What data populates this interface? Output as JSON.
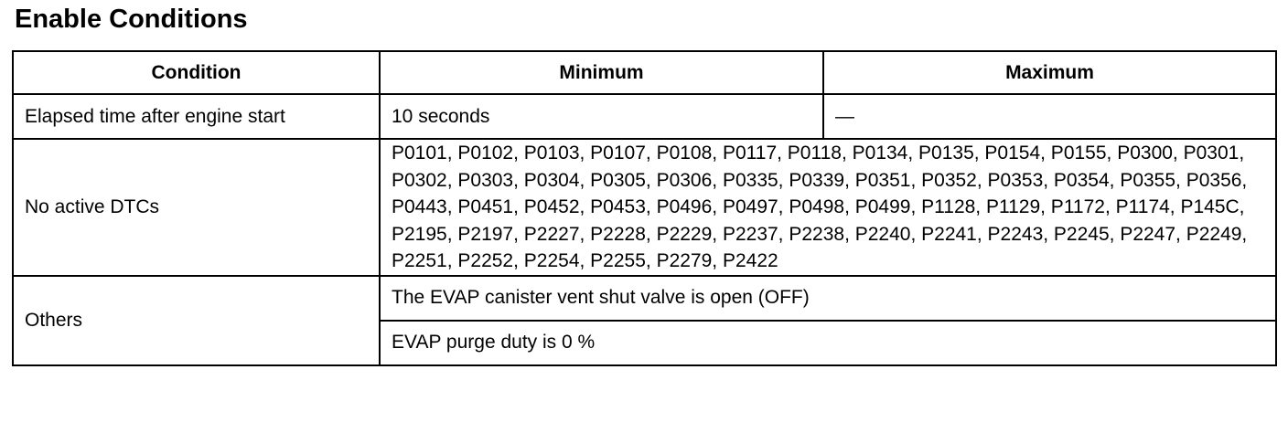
{
  "heading": "Enable Conditions",
  "table": {
    "headers": {
      "condition": "Condition",
      "minimum": "Minimum",
      "maximum": "Maximum"
    },
    "rows": [
      {
        "condition": "Elapsed time after engine start",
        "minimum": "10 seconds",
        "maximum": "—"
      },
      {
        "condition": "No active DTCs",
        "value": "P0101, P0102, P0103, P0107, P0108, P0117, P0118, P0134, P0135, P0154, P0155, P0300, P0301, P0302, P0303, P0304, P0305, P0306, P0335, P0339, P0351, P0352, P0353, P0354, P0355, P0356, P0443, P0451, P0452, P0453, P0496, P0497, P0498, P0499, P1128, P1129, P1172, P1174, P145C, P2195, P2197, P2227, P2228, P2229, P2237, P2238, P2240, P2241, P2243, P2245, P2247, P2249, P2251, P2252, P2254, P2255, P2279, P2422"
      },
      {
        "condition": "Others",
        "values": [
          "The EVAP canister vent shut valve is open (OFF)",
          "EVAP purge duty is 0 %"
        ]
      }
    ]
  }
}
